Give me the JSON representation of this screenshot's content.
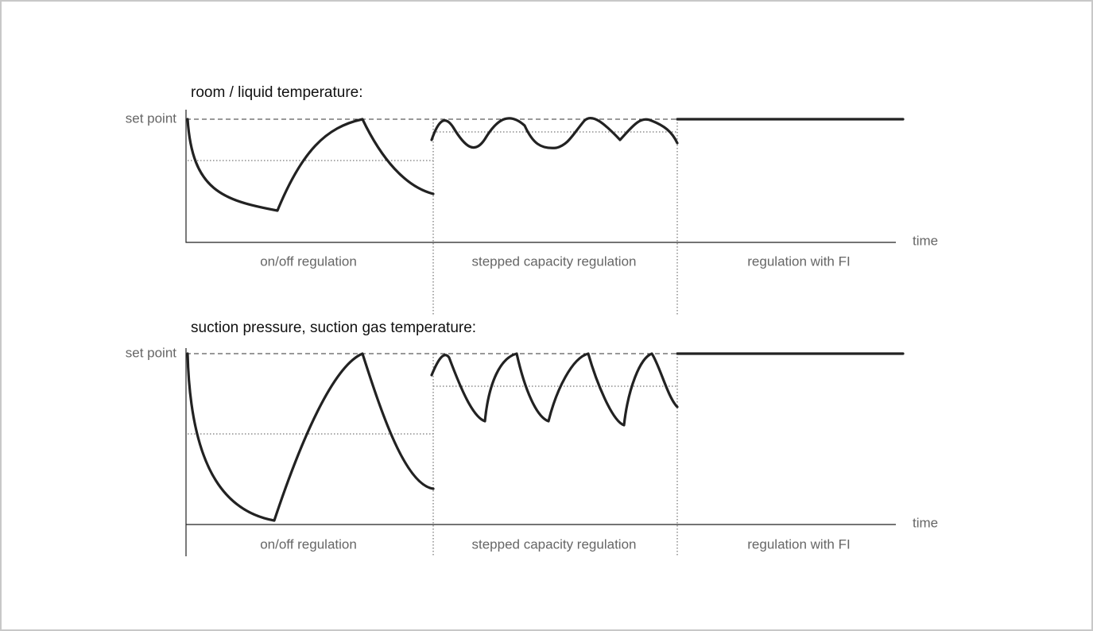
{
  "panels": [
    {
      "title": "room / liquid temperature:",
      "y_label": "set point",
      "x_label": "time",
      "regions": [
        "on/off regulation",
        "stepped capacity regulation",
        "regulation with FI"
      ]
    },
    {
      "title": "suction pressure, suction gas temperature:",
      "y_label": "set point",
      "x_label": "time",
      "regions": [
        "on/off regulation",
        "stepped capacity regulation",
        "regulation with FI"
      ]
    }
  ]
}
